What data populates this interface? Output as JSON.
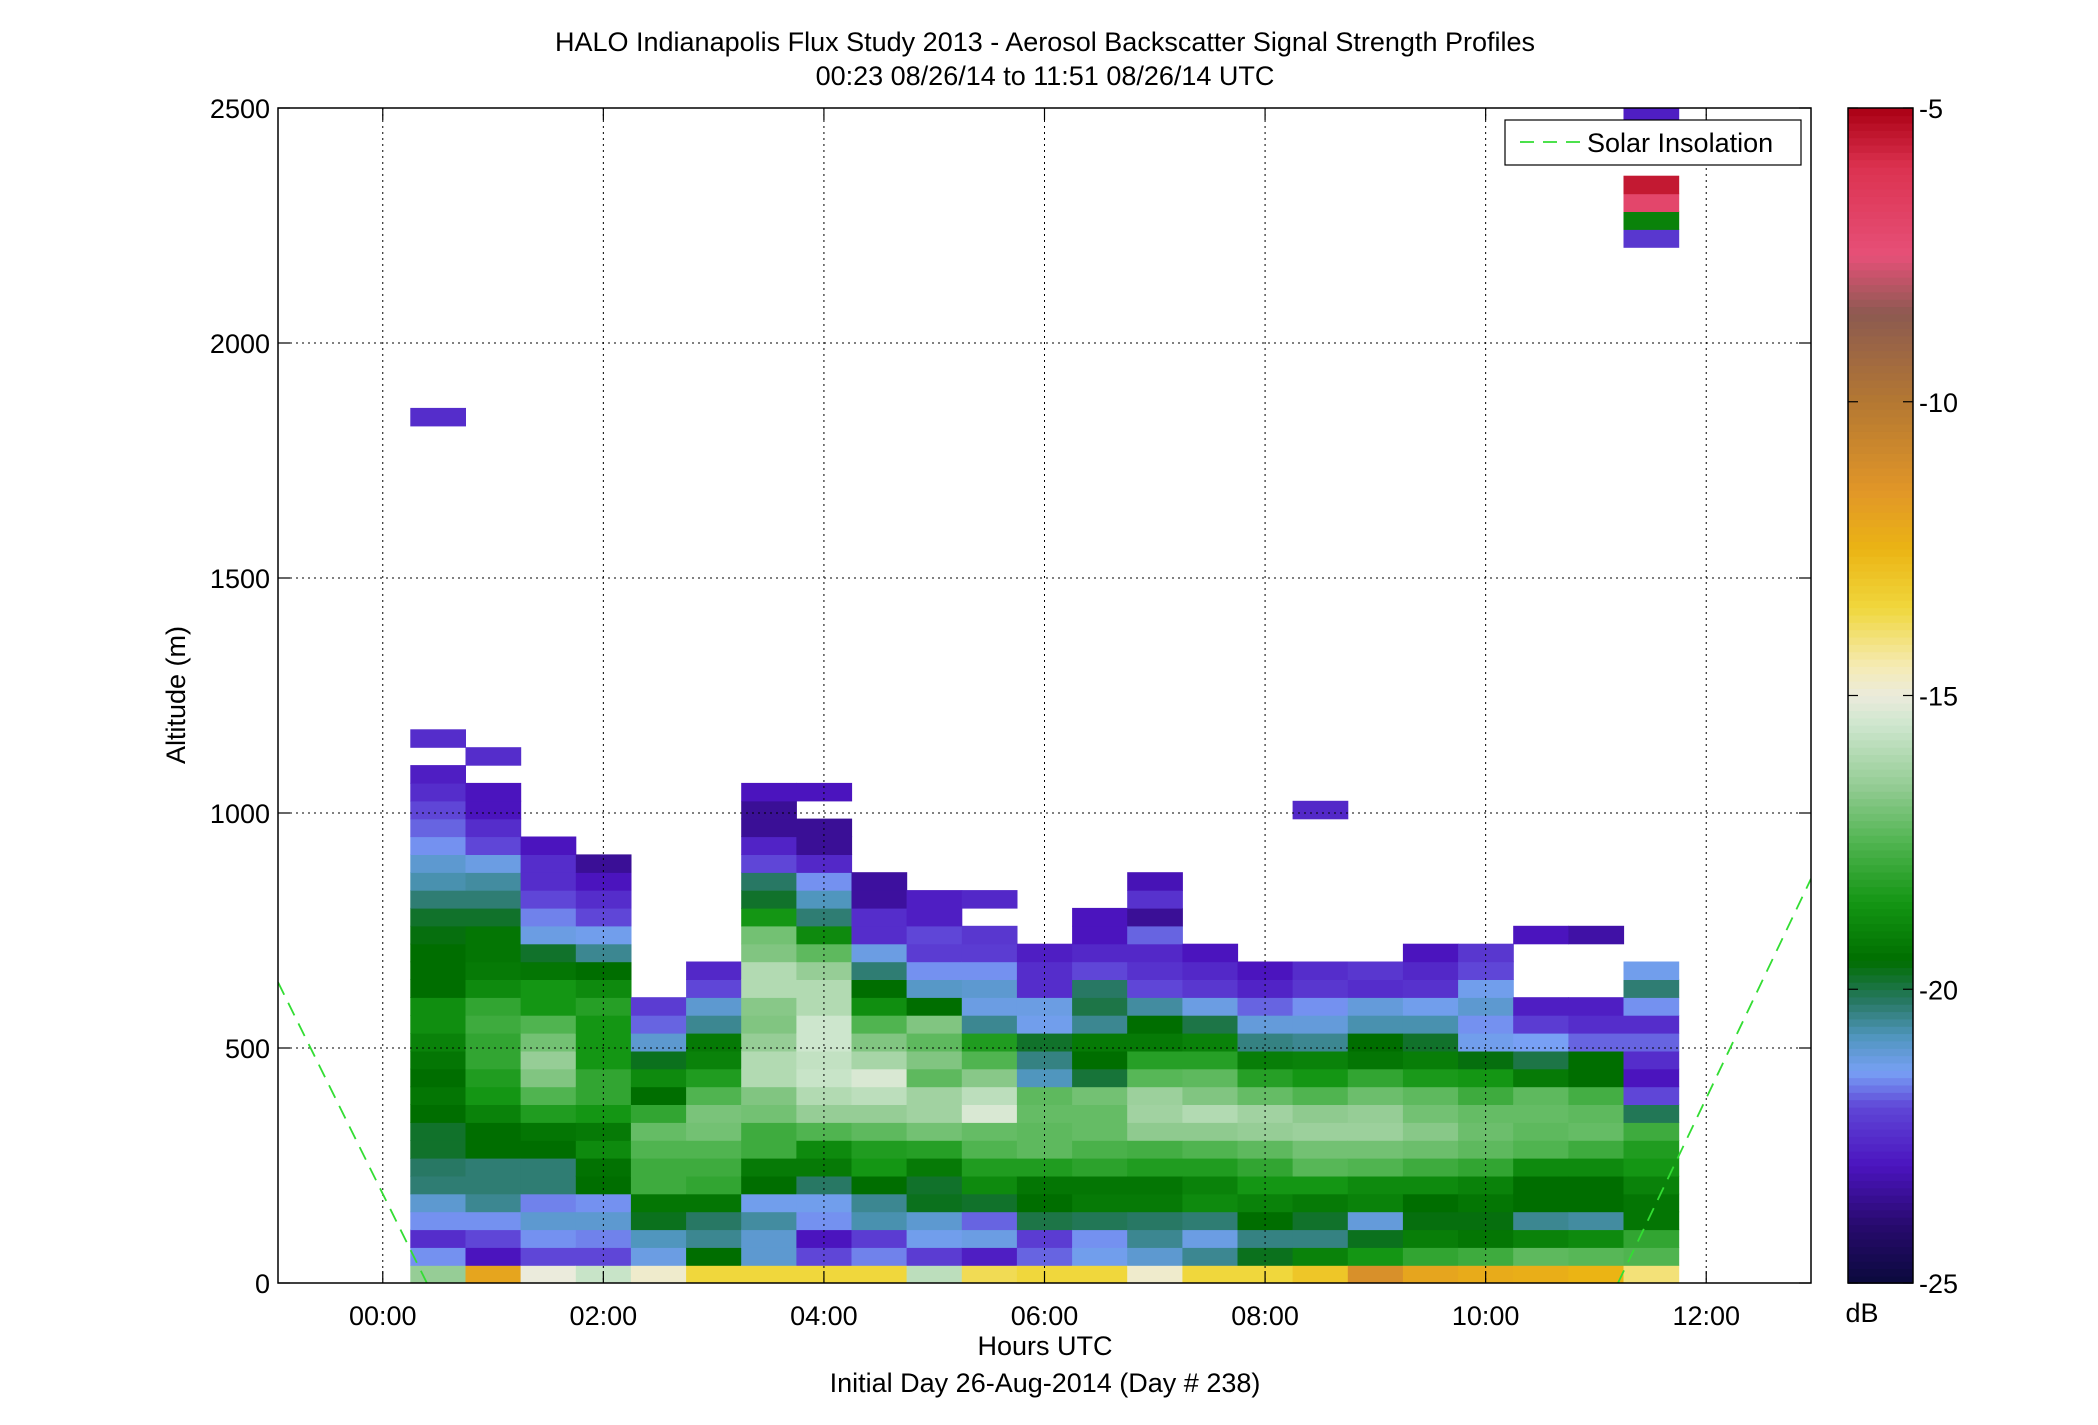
{
  "chart_data": {
    "type": "heatmap",
    "title": "HALO Indianapolis Flux Study 2013 - Aerosol Backscatter Signal Strength Profiles",
    "subtitle": "00:23 08/26/14 to 11:51 08/26/14  UTC",
    "xlabel": "Hours UTC",
    "xlabel2": "Initial Day 26-Aug-2014 (Day # 238)",
    "ylabel": "Altitude (m)",
    "xlim": [
      -0.95,
      12.95
    ],
    "ylim": [
      0,
      2500
    ],
    "x_ticks": [
      0,
      2,
      4,
      6,
      8,
      10,
      12
    ],
    "x_tick_labels": [
      "00:00",
      "02:00",
      "04:00",
      "06:00",
      "08:00",
      "10:00",
      "12:00"
    ],
    "y_ticks": [
      0,
      500,
      1000,
      1500,
      2000,
      2500
    ],
    "y_tick_labels": [
      "0",
      "500",
      "1000",
      "1500",
      "2000",
      "2500"
    ],
    "grid": true,
    "legend": {
      "position": "top-right",
      "entries": [
        "Solar Insolation"
      ]
    },
    "colorbar": {
      "label": "dB",
      "range": [
        -25,
        -5
      ],
      "ticks": [
        -25,
        -20,
        -15,
        -10,
        -5
      ],
      "tick_labels": [
        "-25",
        "-20",
        "-15",
        "-10",
        "-5"
      ]
    },
    "profile_times": [
      0.5,
      1.0,
      1.5,
      2.0,
      2.5,
      3.0,
      3.5,
      4.0,
      4.5,
      5.0,
      5.5,
      6.0,
      6.5,
      7.0,
      7.5,
      8.0,
      8.5,
      9.0,
      9.5,
      10.0,
      10.5,
      11.0,
      11.5
    ],
    "altitude_bin_m": 38,
    "profiles": [
      {
        "time": 0.5,
        "values": [
          -16.5,
          -21.5,
          -22.5,
          -21.5,
          -21,
          -20.3,
          -20.2,
          -19.8,
          -19.8,
          -19.5,
          -19.3,
          -19.5,
          -19.3,
          -19,
          -18.7,
          -18.7,
          -19.5,
          -19.5,
          -19.5,
          -19.6,
          -19.8,
          -20.3,
          -20.7,
          -21,
          -21.5,
          -21.8,
          -22,
          -22.5,
          -22.8,
          null,
          -22.5,
          null,
          null,
          null,
          null,
          null,
          null,
          null,
          null,
          null,
          null,
          null,
          null,
          null,
          null,
          null,
          null,
          null,
          -22.5
        ]
      },
      {
        "time": 1.0,
        "values": [
          -12,
          -23,
          -22,
          -21.5,
          -20.5,
          -20.3,
          -20.3,
          -19.5,
          -19.5,
          -19,
          -18.5,
          -18.3,
          -18,
          -18,
          -17.8,
          -18,
          -18.8,
          -19.2,
          -19.3,
          -19.3,
          -19.8,
          -20.3,
          -20.6,
          -21.2,
          -22,
          -22.5,
          -23,
          -23,
          null,
          -22.5
        ]
      },
      {
        "time": 1.5,
        "values": [
          -15,
          -22,
          -21.5,
          -21,
          -21.6,
          -20.3,
          -20.3,
          -19.5,
          -19.3,
          -18.3,
          -17.5,
          -16.8,
          -16.5,
          -17,
          -17.5,
          -18.5,
          -18.5,
          -19.3,
          -19.8,
          -21.2,
          -21.6,
          -22,
          -22.5,
          -22.5,
          -23
        ]
      },
      {
        "time": 2.0,
        "values": [
          -15.6,
          -22,
          -21.6,
          -21,
          -21.5,
          -19.5,
          -19.4,
          -18.8,
          -19.2,
          -18.5,
          -18,
          -18,
          -18.5,
          -18.5,
          -18.5,
          -18.2,
          -18.8,
          -19.5,
          -20.5,
          -21.3,
          -22,
          -22.5,
          -23,
          -23.5
        ]
      },
      {
        "time": 2.5,
        "values": [
          -14.8,
          -21.2,
          -20.8,
          -19.7,
          -19.3,
          -17.8,
          -17.8,
          -17.5,
          -17.2,
          -18,
          -19.5,
          -18.8,
          -19.7,
          -21,
          -21.8,
          -22.2
        ]
      },
      {
        "time": 3.0,
        "values": [
          -13.5,
          -19.5,
          -20.5,
          -20.2,
          -19.3,
          -18,
          -17.8,
          -17.5,
          -17,
          -16.9,
          -17.5,
          -18.3,
          -19,
          -19.2,
          -20.5,
          -21,
          -22,
          -22.6
        ]
      },
      {
        "time": 3.5,
        "values": [
          -13.5,
          -21,
          -21,
          -20.6,
          -21.3,
          -19.5,
          -19.2,
          -17.8,
          -17.8,
          -17,
          -16.8,
          -16,
          -16,
          -16.5,
          -16.8,
          -16.7,
          -16,
          -16,
          -16.8,
          -17,
          -18.5,
          -19.8,
          -20.2,
          -22,
          -22.7,
          -23.5,
          -23.5,
          -23
        ]
      },
      {
        "time": 4.0,
        "values": [
          -13.5,
          -22,
          -23,
          -21.5,
          -21.3,
          -20.2,
          -19.2,
          -18.8,
          -17.5,
          -16.5,
          -16,
          -15.6,
          -15.7,
          -15.5,
          -15.5,
          -16,
          -16,
          -16.5,
          -17.3,
          -18.8,
          -20.3,
          -20.8,
          -21.5,
          -22.6,
          -23.5,
          -23.5,
          null,
          -23
        ]
      },
      {
        "time": 4.5,
        "values": [
          -13.5,
          -21.6,
          -22.2,
          -20.7,
          -20.5,
          -19.5,
          -18.5,
          -18.3,
          -17.3,
          -16.5,
          -15.8,
          -15.3,
          -16.2,
          -16.8,
          -17.5,
          -18.7,
          -19.5,
          -20.3,
          -21.2,
          -22.5,
          -22.5,
          -23.4,
          -23.4
        ]
      },
      {
        "time": 5.0,
        "values": [
          -15.8,
          -22.2,
          -21.3,
          -21,
          -19.7,
          -19.8,
          -19.2,
          -18.2,
          -17,
          -16.3,
          -16.3,
          -17.3,
          -16.8,
          -17.3,
          -16.8,
          -19.5,
          -20.9,
          -21.5,
          -22.2,
          -22,
          -22.8,
          -22.8
        ]
      },
      {
        "time": 5.5,
        "values": [
          -13.7,
          -22.8,
          -21.2,
          -21.8,
          -19.8,
          -18.8,
          -18.3,
          -17.5,
          -17.2,
          -15.3,
          -15.8,
          -16.7,
          -17.5,
          -18.3,
          -20.5,
          -21.2,
          -21,
          -21.5,
          -22.2,
          -22.3,
          null,
          -22.6
        ]
      },
      {
        "time": 6.0,
        "values": [
          -13.5,
          -21.8,
          -22.2,
          -20,
          -19.5,
          -19.3,
          -18.3,
          -17.3,
          -17.3,
          -17.2,
          -17.3,
          -20.8,
          -20.4,
          -19.8,
          -21.3,
          -21.2,
          -22.5,
          -22.5,
          -22.8
        ]
      },
      {
        "time": 6.5,
        "values": [
          -13.5,
          -21.3,
          -21.5,
          -20.1,
          -19.2,
          -19.3,
          -18.1,
          -17.6,
          -17.2,
          -17.2,
          -17,
          -19.9,
          -19.5,
          -19.2,
          -20.5,
          -20,
          -20.2,
          -22,
          -22.6,
          -23,
          -23
        ]
      },
      {
        "time": 7.0,
        "values": [
          -14.8,
          -21,
          -20.5,
          -20.2,
          -19.2,
          -19.3,
          -18.3,
          -17.7,
          -16.6,
          -16.3,
          -16.4,
          -17.4,
          -18.2,
          -19.2,
          -19.5,
          -20.6,
          -22,
          -22.4,
          -22.6,
          -21.8,
          -23.5,
          -22.4,
          -23.1
        ]
      },
      {
        "time": 7.5,
        "values": [
          -13.5,
          -20.5,
          -21.2,
          -20.3,
          -18.8,
          -19,
          -18.3,
          -17.5,
          -16.6,
          -16,
          -16.8,
          -17.3,
          -18.2,
          -19,
          -20,
          -21.2,
          -22.3,
          -22.6,
          -23
        ]
      },
      {
        "time": 8.0,
        "values": [
          -13.5,
          -19.7,
          -20.4,
          -19.5,
          -19,
          -18.5,
          -18,
          -17.3,
          -16.5,
          -16.3,
          -17.2,
          -18.2,
          -19.1,
          -20.4,
          -21.1,
          -21.8,
          -22.7,
          -23
        ]
      },
      {
        "time": 8.5,
        "values": [
          -13,
          -19,
          -20.4,
          -19.8,
          -19.2,
          -18.5,
          -17.4,
          -17,
          -16.4,
          -16.6,
          -17.5,
          -18.5,
          -19,
          -20.5,
          -21.1,
          -21.5,
          -22.3,
          -22.5,
          null,
          null,
          null,
          null,
          null,
          null,
          null,
          null,
          -22.6
        ]
      },
      {
        "time": 9.0,
        "values": [
          -11.2,
          -18.5,
          -19.7,
          -21.1,
          -19,
          -18.8,
          -17.5,
          -17,
          -16.4,
          -16.5,
          -17.1,
          -18,
          -19.3,
          -19.5,
          -20.7,
          -21.1,
          -22.5,
          -22.3
        ]
      },
      {
        "time": 9.5,
        "values": [
          -12,
          -18,
          -19.1,
          -19.6,
          -19.5,
          -18.8,
          -17.8,
          -17.1,
          -16.7,
          -17,
          -17.3,
          -18.4,
          -19.1,
          -19.8,
          -20.7,
          -21.3,
          -22.4,
          -22.6,
          -23
        ]
      },
      {
        "time": 10.0,
        "values": [
          -12.2,
          -17.8,
          -19.3,
          -19.6,
          -19.3,
          -19,
          -18,
          -17.3,
          -17.1,
          -17.2,
          -17.8,
          -18.5,
          -19.6,
          -21.3,
          -21.5,
          -21,
          -21.3,
          -22,
          -22.3
        ]
      },
      {
        "time": 10.5,
        "values": [
          -12.3,
          -17.3,
          -19,
          -20.5,
          -19.5,
          -19.5,
          -18.8,
          -17.5,
          -17.3,
          -17.2,
          -17.3,
          -19.2,
          -20,
          -21.4,
          -22.2,
          -22.8,
          null,
          null,
          null,
          -23
        ]
      },
      {
        "time": 11.0,
        "values": [
          -12.5,
          -17.4,
          -18.8,
          -20.6,
          -19.5,
          -19.5,
          -18.8,
          -17.8,
          -17.2,
          -17.3,
          -17.7,
          -19.5,
          -19.5,
          -21.8,
          -22.5,
          -22.8,
          null,
          null,
          null,
          -23.3
        ]
      },
      {
        "time": 11.5,
        "values": [
          -14,
          -17.5,
          -18,
          -19.3,
          -19.3,
          -19,
          -18.5,
          -18.3,
          -17.8,
          -20.1,
          -22,
          -23,
          -22.5,
          -21.8,
          -22.5,
          -21.5,
          -20.3,
          -21.3,
          null,
          null,
          null,
          null,
          null,
          null,
          null,
          null,
          null,
          null,
          null,
          null,
          null,
          null,
          null,
          null,
          null,
          null,
          null,
          null,
          null,
          null,
          null,
          null,
          null,
          null,
          null,
          null,
          null,
          null,
          null,
          null,
          null,
          null,
          null,
          null,
          null,
          null,
          null,
          null,
          -22.3,
          -19,
          -7,
          -5.5,
          null,
          null,
          null,
          -22.8
        ]
      }
    ],
    "solar_insolation_segments": [
      {
        "from": [
          -0.95,
          640
        ],
        "to": [
          0.4,
          0
        ]
      },
      {
        "from": [
          11.2,
          0
        ],
        "to": [
          12.95,
          860
        ]
      }
    ],
    "colors": {
      "solar_line": "#33dd33",
      "grid": "#000000",
      "axes": "#000000"
    }
  }
}
